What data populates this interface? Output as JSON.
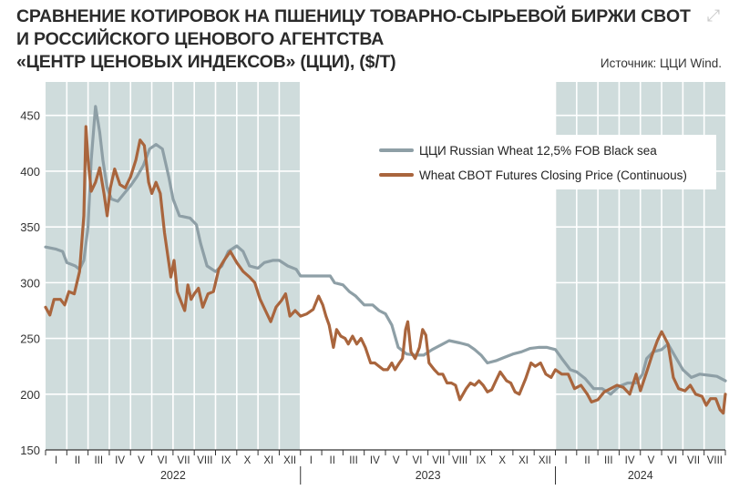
{
  "header": {
    "title_line1": "СРАВНЕНИЕ КОТИРОВОК НА ПШЕНИЦУ ТОВАРНО-СЫРЬЕВОЙ БИРЖИ CBOT",
    "title_line2": "И РОССИЙСКОГО ЦЕНОВОГО АГЕНТСТВА",
    "title_line3": "«ЦЕНТР ЦЕНОВЫХ ИНДЕКСОВ» (ЦЦИ), ($/Т)",
    "source": "Источник: ЦЦИ Wind."
  },
  "colors": {
    "shade": "#cfdcdc",
    "grid": "#ffffff",
    "series_gray": "#8e9fa6",
    "series_brown": "#a9653d",
    "axis": "#333333"
  },
  "chart_data": {
    "type": "line",
    "title": "СРАВНЕНИЕ КОТИРОВОК НА ПШЕНИЦУ ТОВАРНО-СЫРЬЕВОЙ БИРЖИ CBOT И РОССИЙСКОГО ЦЕНОВОГО АГЕНТСТВА «ЦЕНТР ЦЕНОВЫХ ИНДЕКСОВ» (ЦЦИ), ($/Т)",
    "xlabel": "",
    "ylabel": "",
    "ylim": [
      150,
      480
    ],
    "xlim": [
      0,
      32
    ],
    "x_unit": "months since Jan 2022 (month index)",
    "yticks": [
      150,
      200,
      250,
      300,
      350,
      400,
      450
    ],
    "grid": true,
    "legend_position": "top-right",
    "month_labels": [
      "I",
      "II",
      "III",
      "IV",
      "V",
      "VI",
      "VII",
      "VIII",
      "IX",
      "X",
      "XI",
      "XII",
      "I",
      "II",
      "III",
      "IV",
      "V",
      "VI",
      "VII",
      "VIII",
      "IX",
      "X",
      "XI",
      "XII",
      "I",
      "II",
      "III",
      "IV",
      "V",
      "VI",
      "VII",
      "VIII"
    ],
    "years": [
      {
        "label": "2022",
        "start": 0,
        "end": 12
      },
      {
        "label": "2023",
        "start": 12,
        "end": 24
      },
      {
        "label": "2024",
        "start": 24,
        "end": 32
      }
    ],
    "shaded_ranges": [
      [
        0,
        12
      ],
      [
        24,
        32
      ]
    ],
    "series": [
      {
        "name": "ЦЦИ Russian Wheat 12,5% FOB Black sea",
        "color": "#8e9fa6",
        "points": [
          [
            0.0,
            332
          ],
          [
            0.5,
            330
          ],
          [
            0.8,
            328
          ],
          [
            1.0,
            318
          ],
          [
            1.4,
            315
          ],
          [
            1.6,
            312
          ],
          [
            1.8,
            320
          ],
          [
            2.0,
            350
          ],
          [
            2.15,
            410
          ],
          [
            2.35,
            458
          ],
          [
            2.55,
            435
          ],
          [
            2.7,
            410
          ],
          [
            2.9,
            385
          ],
          [
            3.1,
            375
          ],
          [
            3.4,
            373
          ],
          [
            3.7,
            380
          ],
          [
            4.0,
            387
          ],
          [
            4.3,
            395
          ],
          [
            4.6,
            405
          ],
          [
            4.9,
            420
          ],
          [
            5.2,
            424
          ],
          [
            5.5,
            420
          ],
          [
            5.8,
            395
          ],
          [
            6.0,
            375
          ],
          [
            6.3,
            360
          ],
          [
            6.8,
            358
          ],
          [
            7.1,
            352
          ],
          [
            7.3,
            335
          ],
          [
            7.6,
            315
          ],
          [
            8.0,
            310
          ],
          [
            8.3,
            315
          ],
          [
            8.6,
            328
          ],
          [
            9.0,
            333
          ],
          [
            9.3,
            328
          ],
          [
            9.6,
            315
          ],
          [
            10.0,
            313
          ],
          [
            10.3,
            318
          ],
          [
            10.7,
            320
          ],
          [
            11.0,
            320
          ],
          [
            11.4,
            315
          ],
          [
            11.8,
            312
          ],
          [
            12.0,
            306
          ],
          [
            12.5,
            306
          ],
          [
            13.0,
            306
          ],
          [
            13.4,
            306
          ],
          [
            13.6,
            300
          ],
          [
            14.0,
            298
          ],
          [
            14.3,
            292
          ],
          [
            14.6,
            288
          ],
          [
            15.0,
            280
          ],
          [
            15.4,
            280
          ],
          [
            15.7,
            275
          ],
          [
            16.0,
            272
          ],
          [
            16.3,
            262
          ],
          [
            16.6,
            242
          ],
          [
            17.0,
            236
          ],
          [
            17.4,
            235
          ],
          [
            17.8,
            235
          ],
          [
            18.2,
            240
          ],
          [
            18.6,
            244
          ],
          [
            19.0,
            248
          ],
          [
            19.5,
            246
          ],
          [
            19.9,
            244
          ],
          [
            20.2,
            240
          ],
          [
            20.5,
            235
          ],
          [
            20.8,
            228
          ],
          [
            21.2,
            230
          ],
          [
            21.6,
            233
          ],
          [
            22.0,
            236
          ],
          [
            22.4,
            238
          ],
          [
            22.8,
            241
          ],
          [
            23.2,
            242
          ],
          [
            23.6,
            242
          ],
          [
            24.0,
            240
          ],
          [
            24.3,
            232
          ],
          [
            24.7,
            222
          ],
          [
            25.0,
            220
          ],
          [
            25.4,
            214
          ],
          [
            25.8,
            205
          ],
          [
            26.2,
            205
          ],
          [
            26.6,
            200
          ],
          [
            27.0,
            207
          ],
          [
            27.4,
            210
          ],
          [
            27.8,
            210
          ],
          [
            28.1,
            218
          ],
          [
            28.3,
            232
          ],
          [
            28.6,
            238
          ],
          [
            29.0,
            240
          ],
          [
            29.3,
            245
          ],
          [
            29.6,
            235
          ],
          [
            30.0,
            222
          ],
          [
            30.4,
            215
          ],
          [
            30.8,
            218
          ],
          [
            31.2,
            217
          ],
          [
            31.6,
            216
          ],
          [
            32.0,
            212
          ]
        ]
      },
      {
        "name": "Wheat CBOT Futures Closing Price (Continuous)",
        "color": "#a9653d",
        "points": [
          [
            0.0,
            278
          ],
          [
            0.2,
            271
          ],
          [
            0.4,
            285
          ],
          [
            0.7,
            285
          ],
          [
            0.9,
            280
          ],
          [
            1.1,
            292
          ],
          [
            1.35,
            290
          ],
          [
            1.6,
            310
          ],
          [
            1.8,
            360
          ],
          [
            1.9,
            440
          ],
          [
            2.0,
            410
          ],
          [
            2.15,
            382
          ],
          [
            2.35,
            390
          ],
          [
            2.55,
            403
          ],
          [
            2.75,
            380
          ],
          [
            2.9,
            360
          ],
          [
            3.05,
            385
          ],
          [
            3.25,
            402
          ],
          [
            3.5,
            388
          ],
          [
            3.75,
            385
          ],
          [
            4.0,
            395
          ],
          [
            4.25,
            410
          ],
          [
            4.45,
            428
          ],
          [
            4.65,
            423
          ],
          [
            4.85,
            390
          ],
          [
            5.0,
            380
          ],
          [
            5.2,
            390
          ],
          [
            5.4,
            380
          ],
          [
            5.6,
            345
          ],
          [
            5.75,
            325
          ],
          [
            5.9,
            305
          ],
          [
            6.05,
            320
          ],
          [
            6.2,
            292
          ],
          [
            6.4,
            282
          ],
          [
            6.55,
            275
          ],
          [
            6.7,
            298
          ],
          [
            6.85,
            285
          ],
          [
            7.0,
            290
          ],
          [
            7.2,
            295
          ],
          [
            7.4,
            278
          ],
          [
            7.65,
            290
          ],
          [
            7.9,
            292
          ],
          [
            8.15,
            312
          ],
          [
            8.4,
            320
          ],
          [
            8.7,
            328
          ],
          [
            9.0,
            318
          ],
          [
            9.3,
            310
          ],
          [
            9.6,
            305
          ],
          [
            9.85,
            300
          ],
          [
            10.1,
            285
          ],
          [
            10.35,
            275
          ],
          [
            10.6,
            265
          ],
          [
            10.85,
            278
          ],
          [
            11.1,
            284
          ],
          [
            11.3,
            290
          ],
          [
            11.5,
            270
          ],
          [
            11.75,
            275
          ],
          [
            12.0,
            270
          ],
          [
            12.3,
            272
          ],
          [
            12.6,
            276
          ],
          [
            12.85,
            288
          ],
          [
            13.05,
            280
          ],
          [
            13.2,
            270
          ],
          [
            13.35,
            262
          ],
          [
            13.55,
            242
          ],
          [
            13.7,
            258
          ],
          [
            13.9,
            252
          ],
          [
            14.1,
            250
          ],
          [
            14.25,
            245
          ],
          [
            14.45,
            252
          ],
          [
            14.65,
            245
          ],
          [
            14.85,
            250
          ],
          [
            15.05,
            242
          ],
          [
            15.3,
            228
          ],
          [
            15.5,
            228
          ],
          [
            15.7,
            225
          ],
          [
            15.9,
            222
          ],
          [
            16.1,
            222
          ],
          [
            16.3,
            228
          ],
          [
            16.45,
            222
          ],
          [
            16.65,
            228
          ],
          [
            16.8,
            232
          ],
          [
            16.95,
            258
          ],
          [
            17.05,
            265
          ],
          [
            17.2,
            238
          ],
          [
            17.4,
            232
          ],
          [
            17.6,
            242
          ],
          [
            17.75,
            258
          ],
          [
            17.9,
            253
          ],
          [
            18.05,
            228
          ],
          [
            18.3,
            222
          ],
          [
            18.5,
            218
          ],
          [
            18.7,
            218
          ],
          [
            18.9,
            210
          ],
          [
            19.1,
            210
          ],
          [
            19.3,
            208
          ],
          [
            19.5,
            195
          ],
          [
            19.8,
            205
          ],
          [
            20.0,
            210
          ],
          [
            20.2,
            208
          ],
          [
            20.4,
            212
          ],
          [
            20.6,
            208
          ],
          [
            20.8,
            202
          ],
          [
            21.0,
            204
          ],
          [
            21.2,
            212
          ],
          [
            21.4,
            220
          ],
          [
            21.7,
            212
          ],
          [
            21.9,
            210
          ],
          [
            22.1,
            202
          ],
          [
            22.3,
            200
          ],
          [
            22.6,
            214
          ],
          [
            22.85,
            228
          ],
          [
            23.05,
            225
          ],
          [
            23.3,
            228
          ],
          [
            23.55,
            218
          ],
          [
            23.8,
            215
          ],
          [
            24.0,
            222
          ],
          [
            24.3,
            218
          ],
          [
            24.6,
            218
          ],
          [
            24.9,
            205
          ],
          [
            25.2,
            208
          ],
          [
            25.5,
            200
          ],
          [
            25.7,
            193
          ],
          [
            26.0,
            195
          ],
          [
            26.3,
            202
          ],
          [
            26.6,
            205
          ],
          [
            26.9,
            208
          ],
          [
            27.2,
            206
          ],
          [
            27.5,
            200
          ],
          [
            27.8,
            218
          ],
          [
            28.0,
            203
          ],
          [
            28.3,
            220
          ],
          [
            28.55,
            235
          ],
          [
            28.8,
            248
          ],
          [
            29.0,
            256
          ],
          [
            29.3,
            245
          ],
          [
            29.55,
            215
          ],
          [
            29.8,
            205
          ],
          [
            30.1,
            203
          ],
          [
            30.35,
            208
          ],
          [
            30.6,
            200
          ],
          [
            30.9,
            198
          ],
          [
            31.1,
            190
          ],
          [
            31.3,
            196
          ],
          [
            31.55,
            196
          ],
          [
            31.75,
            186
          ],
          [
            31.9,
            183
          ],
          [
            32.0,
            200
          ]
        ]
      }
    ]
  }
}
